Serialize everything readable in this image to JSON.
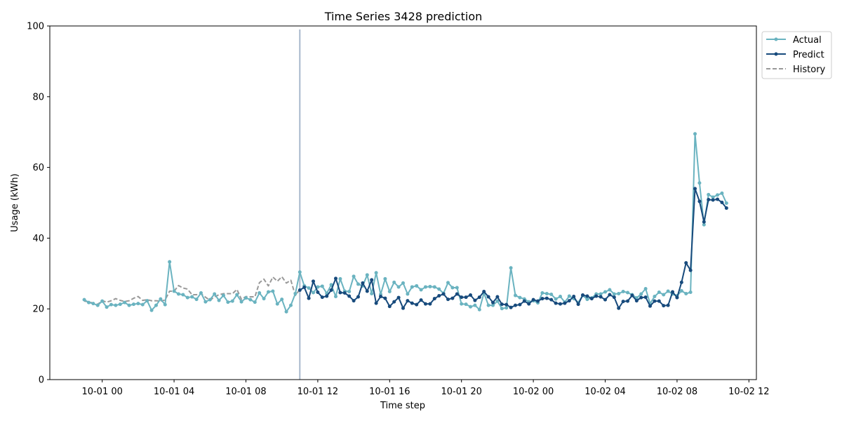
{
  "chart_data": {
    "type": "line",
    "title": "Time Series 3428 prediction",
    "xlabel": "Time step",
    "ylabel": "Usage (kWh)",
    "ylim": [
      0,
      100
    ],
    "yticks": [
      0,
      20,
      40,
      60,
      80,
      100
    ],
    "xlim": [
      "2023-09-30T21:05",
      "2023-10-02T12:25"
    ],
    "xticks": [
      {
        "t": "2023-10-01T00:00",
        "label": "10-01 00"
      },
      {
        "t": "2023-10-01T04:00",
        "label": "10-01 04"
      },
      {
        "t": "2023-10-01T08:00",
        "label": "10-01 08"
      },
      {
        "t": "2023-10-01T12:00",
        "label": "10-01 12"
      },
      {
        "t": "2023-10-01T16:00",
        "label": "10-01 16"
      },
      {
        "t": "2023-10-01T20:00",
        "label": "10-01 20"
      },
      {
        "t": "2023-10-02T00:00",
        "label": "10-02 00"
      },
      {
        "t": "2023-10-02T04:00",
        "label": "10-02 04"
      },
      {
        "t": "2023-10-02T08:00",
        "label": "10-02 08"
      },
      {
        "t": "2023-10-02T12:00",
        "label": "10-02 12"
      }
    ],
    "grid": false,
    "legend_position": "outside top-right",
    "vertical_marker": "2023-10-01T11:00",
    "colors": {
      "actual": "#6ab3c0",
      "predict": "#174a7c",
      "history": "#999999",
      "marker": "#a8b8cc"
    },
    "series": [
      {
        "name": "Actual",
        "style": "solid-dots",
        "start": "2023-09-30T23:00",
        "interval_minutes": 15,
        "values": [
          22.6,
          21.8,
          21.5,
          21.0,
          22.2,
          20.5,
          21.2,
          21.0,
          21.3,
          21.8,
          21.0,
          21.3,
          21.5,
          21.2,
          22.3,
          19.6,
          21.0,
          22.8,
          21.2,
          33.3,
          25.0,
          24.2,
          24.0,
          23.2,
          23.4,
          22.7,
          24.5,
          22.0,
          22.6,
          24.2,
          22.4,
          23.8,
          21.9,
          22.2,
          24.0,
          22.0,
          23.1,
          22.6,
          21.9,
          24.5,
          22.9,
          24.8,
          25.0,
          21.4,
          22.7,
          19.2,
          21.0,
          24.3,
          30.4,
          26.5,
          25.9,
          24.6,
          26.2,
          26.4,
          24.4,
          26.8,
          23.5,
          28.5,
          25.0,
          24.9,
          29.2,
          27.0,
          26.5,
          29.6,
          24.3,
          30.2,
          24.1,
          28.5,
          24.9,
          27.5,
          26.2,
          27.3,
          24.2,
          26.2,
          26.5,
          25.4,
          26.2,
          26.3,
          26.2,
          25.6,
          24.4,
          27.4,
          26.0,
          26.0,
          21.4,
          21.3,
          20.6,
          21.0,
          19.8,
          24.5,
          21.0,
          21.0,
          22.2,
          20.1,
          20.3,
          31.6,
          23.8,
          23.2,
          22.8,
          22.0,
          22.3,
          21.7,
          24.5,
          24.3,
          24.1,
          22.8,
          23.5,
          21.9,
          23.6,
          22.9,
          21.8,
          23.8,
          22.7,
          23.1,
          24.2,
          24.2,
          24.8,
          25.4,
          24.2,
          24.3,
          24.9,
          24.6,
          24.0,
          23.1,
          24.2,
          25.7,
          21.5,
          23.5,
          24.7,
          24.0,
          25.0,
          24.2,
          23.7,
          25.1,
          24.3,
          24.7,
          69.5,
          55.6,
          43.8,
          52.3,
          51.6,
          52.2,
          52.7,
          49.9
        ]
      },
      {
        "name": "Predict",
        "style": "solid-dots",
        "start": "2023-10-01T11:00",
        "interval_minutes": 15,
        "values": [
          25.3,
          26.1,
          23.0,
          27.8,
          24.7,
          23.3,
          23.6,
          25.3,
          28.6,
          24.6,
          24.5,
          23.6,
          22.3,
          23.4,
          27.3,
          25.0,
          28.2,
          21.6,
          23.5,
          23.0,
          20.7,
          22.0,
          23.2,
          20.2,
          22.3,
          21.6,
          21.2,
          22.5,
          21.4,
          21.4,
          22.9,
          23.7,
          24.2,
          22.7,
          23.0,
          24.2,
          23.3,
          23.3,
          23.9,
          22.4,
          23.3,
          24.9,
          23.4,
          21.8,
          23.4,
          21.3,
          21.2,
          20.4,
          21.0,
          21.2,
          22.2,
          21.4,
          22.6,
          22.2,
          22.9,
          23.0,
          22.6,
          21.6,
          21.4,
          21.6,
          22.3,
          23.5,
          21.3,
          23.9,
          23.6,
          22.9,
          23.6,
          23.4,
          22.6,
          24.0,
          23.3,
          20.2,
          22.1,
          22.2,
          23.8,
          22.3,
          23.2,
          23.3,
          20.8,
          22.2,
          22.2,
          20.9,
          21.0,
          24.8,
          23.2,
          27.5,
          33.0,
          30.9,
          54.0,
          50.4,
          44.6,
          50.9,
          50.8,
          51.0,
          50.1,
          48.5
        ]
      },
      {
        "name": "History",
        "style": "dashed",
        "start": "2023-09-30T23:00",
        "interval_minutes": 15,
        "values": [
          22.2,
          22.0,
          21.6,
          21.3,
          22.3,
          21.9,
          22.3,
          22.9,
          22.4,
          22.1,
          22.3,
          23.0,
          23.5,
          22.4,
          22.6,
          22.3,
          22.3,
          22.2,
          22.5,
          25.0,
          25.0,
          26.6,
          25.9,
          25.6,
          24.0,
          24.0,
          24.3,
          23.3,
          22.4,
          23.4,
          24.0,
          24.3,
          24.3,
          24.3,
          25.5,
          22.7,
          23.5,
          23.4,
          23.4,
          27.4,
          28.4,
          26.5,
          29.0,
          27.8,
          29.1,
          27.3,
          28.1,
          23.8,
          25.5
        ]
      }
    ]
  }
}
